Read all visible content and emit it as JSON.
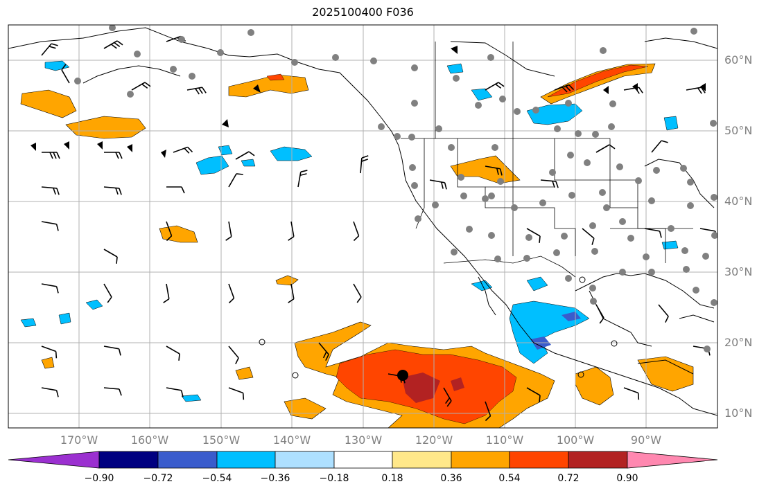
{
  "title": "2025100400 F036",
  "lat_labels": [
    "60°N",
    "50°N",
    "40°N",
    "30°N",
    "20°N",
    "10°N"
  ],
  "lon_labels": [
    "170°W",
    "160°W",
    "150°W",
    "140°W",
    "130°W",
    "120°W",
    "110°W",
    "100°W",
    "90°W"
  ],
  "colorbar": {
    "tick_labels": [
      "−0.90",
      "−0.72",
      "−0.54",
      "−0.36",
      "−0.18",
      "0.18",
      "0.36",
      "0.54",
      "0.72",
      "0.90"
    ],
    "colors": [
      "#9b30d0",
      "#000080",
      "#3a5ccc",
      "#00bfff",
      "#aee0ff",
      "#ffffff",
      "#ffe88a",
      "#ffa500",
      "#ff4500",
      "#b22222",
      "#ff88b0"
    ]
  },
  "map": {
    "lat_range": [
      7.5,
      64.5
    ],
    "lon_range": [
      -180,
      -80
    ],
    "fill_colors": {
      "orange": "#ffa500",
      "red": "#ff4500",
      "darkred": "#b22222",
      "cyan": "#00bfff",
      "lightblue": "#aee0ff",
      "yellow": "#ffe88a",
      "navy": "#3a5ccc"
    },
    "station_color": "#808080",
    "storm_center": {
      "lon": -124.5,
      "lat": 15.5
    }
  }
}
